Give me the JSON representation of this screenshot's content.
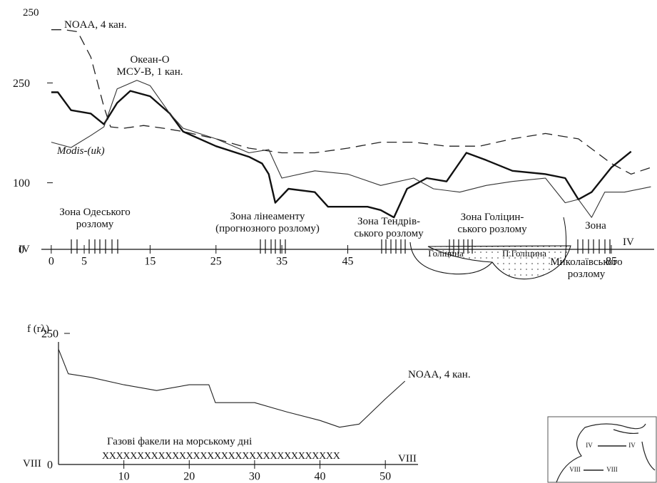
{
  "chart_data": [
    {
      "type": "line",
      "xlim": [
        -1.5,
        91.5
      ],
      "ylim": [
        0,
        350
      ],
      "xticks": [
        0,
        5,
        15,
        25,
        35,
        45,
        85
      ],
      "yticks": [
        0,
        100,
        250
      ],
      "series": [
        {
          "name": "NOAA, 4 кан.",
          "color": "#222222",
          "dashed": true,
          "line_width": 1.3,
          "x": [
            0,
            2,
            4,
            6,
            8,
            9,
            11,
            14,
            17,
            20,
            25,
            30,
            35,
            40,
            45,
            50,
            55,
            60,
            65,
            70,
            75,
            80,
            85,
            88,
            91
          ],
          "values": [
            330,
            330,
            327,
            289,
            214,
            184,
            182,
            186,
            182,
            177,
            166,
            152,
            145,
            145,
            152,
            161,
            161,
            155,
            155,
            166,
            174,
            166,
            129,
            113,
            123
          ]
        },
        {
          "name": "Океан-О\nМСУ-В, 1 кан.",
          "color": "#111111",
          "dashed": false,
          "line_width": 2.4,
          "x": [
            0,
            1,
            3,
            6,
            8,
            10,
            12,
            15,
            18,
            20,
            25,
            30,
            32,
            33,
            34,
            36,
            40,
            42,
            45,
            48,
            50,
            52,
            54,
            57,
            60,
            63,
            66,
            70,
            75,
            78,
            80,
            82,
            85,
            88
          ],
          "values": [
            236,
            236,
            209,
            204,
            188,
            220,
            238,
            230,
            204,
            177,
            155,
            139,
            129,
            113,
            70,
            91,
            86,
            64,
            64,
            64,
            59,
            48,
            91,
            107,
            102,
            145,
            134,
            118,
            113,
            107,
            75,
            86,
            123,
            147
          ]
        },
        {
          "name": "Modis-(uk)",
          "color": "#333333",
          "dashed": false,
          "line_width": 1.1,
          "x": [
            0,
            3,
            6,
            8,
            10,
            13,
            15,
            18,
            20,
            25,
            30,
            33,
            35,
            40,
            45,
            50,
            55,
            58,
            62,
            66,
            70,
            75,
            78,
            80,
            82,
            84,
            87,
            91
          ],
          "values": [
            161,
            153,
            171,
            184,
            241,
            254,
            246,
            204,
            182,
            166,
            145,
            150,
            107,
            118,
            113,
            96,
            107,
            91,
            86,
            96,
            102,
            107,
            70,
            75,
            48,
            86,
            86,
            94
          ]
        }
      ],
      "annotations": [
        "250",
        "Зона Одеського\nрозлому",
        "Зона лінеаменту\n(прогнозного розлому)",
        "Зона Тендрів-\nського розлому",
        "Зона Голіцин-\nського розлому",
        "Зона",
        "Миколаївського\nрозлому",
        "Голіцина",
        "П.Голіцина",
        "IV",
        "IV"
      ]
    },
    {
      "type": "line",
      "xlim": [
        0,
        55
      ],
      "ylim": [
        0,
        250
      ],
      "xticks": [
        10,
        20,
        30,
        40,
        50
      ],
      "yticks": [
        0,
        250
      ],
      "ylabel": "f (rλ)",
      "series": [
        {
          "name": "NOAA, 4 кан.",
          "color": "#222222",
          "dashed": false,
          "line_width": 1.1,
          "x": [
            0,
            1.5,
            5,
            10,
            15,
            20,
            23,
            24,
            30,
            35,
            40,
            43,
            46,
            50,
            53
          ],
          "values": [
            220,
            173,
            166,
            152,
            141,
            152,
            152,
            118,
            118,
            100,
            84,
            71,
            77,
            125,
            159
          ]
        }
      ],
      "annotations": [
        "Газові факели на морському дні",
        "XXXXXXXXXXXXXXXXXXXXXXXXXXXXXXXXXX",
        "VIII",
        "VIII"
      ]
    }
  ],
  "inset": {
    "labels": [
      "IV",
      "IV",
      "VIII",
      "VIII"
    ]
  }
}
